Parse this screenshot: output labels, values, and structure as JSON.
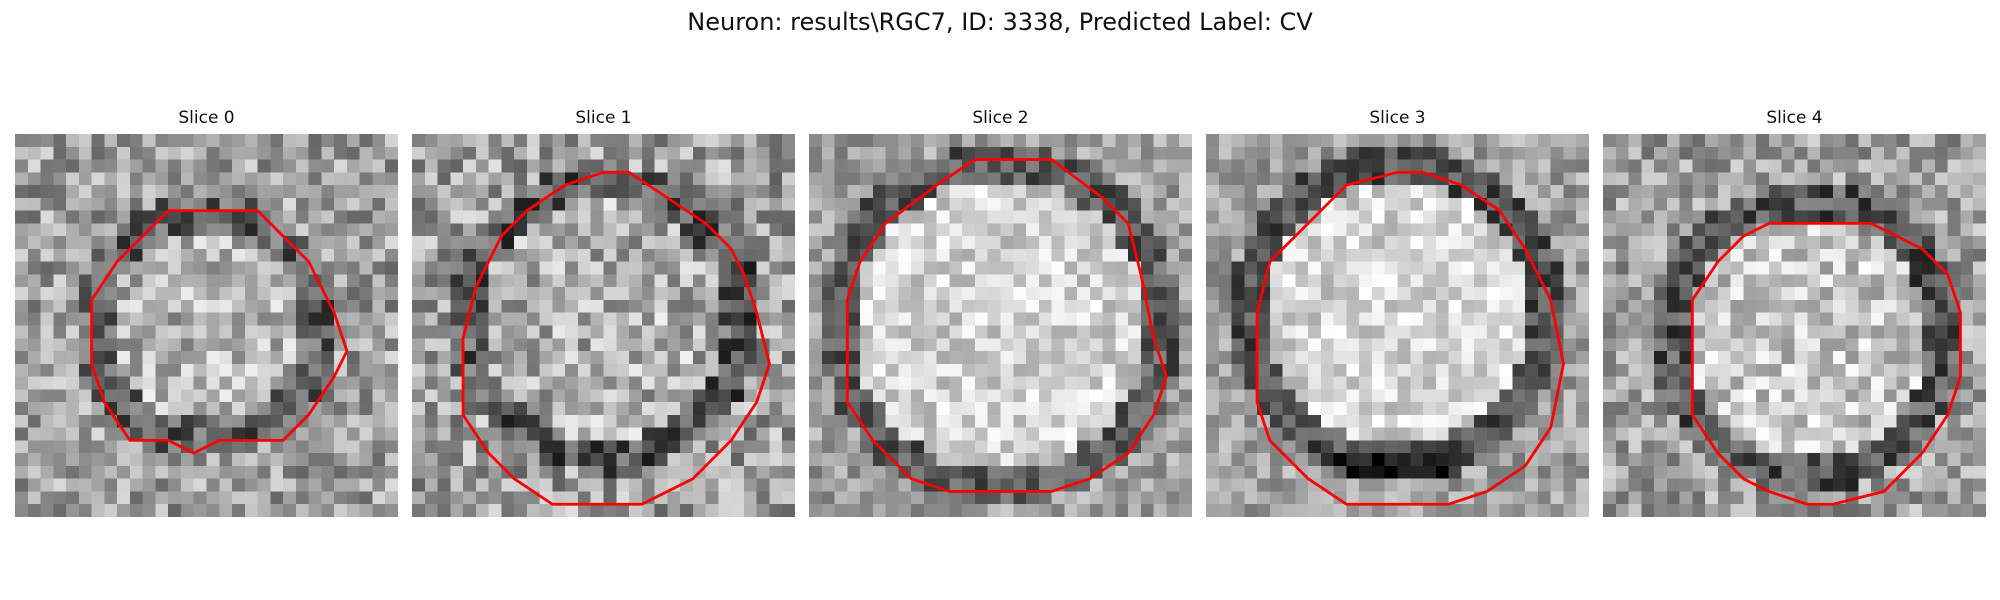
{
  "figure": {
    "title": "Neuron: results\\RGC7, ID: 3338, Predicted Label: CV"
  },
  "panels": [
    {
      "title": "Slice 0",
      "contour_color": "#ff0000"
    },
    {
      "title": "Slice 1",
      "contour_color": "#ff0000"
    },
    {
      "title": "Slice 2",
      "contour_color": "#ff0000"
    },
    {
      "title": "Slice 3",
      "contour_color": "#ff0000"
    },
    {
      "title": "Slice 4",
      "contour_color": "#ff0000"
    }
  ]
}
